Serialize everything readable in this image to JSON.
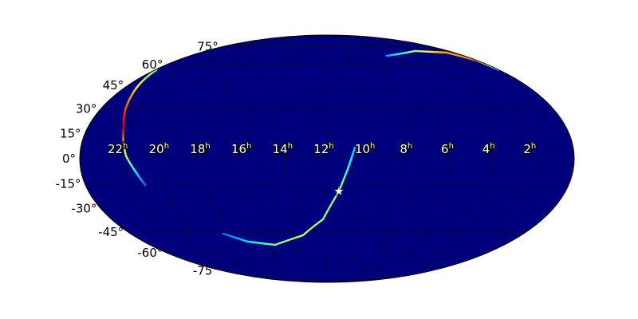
{
  "chart_data": {
    "type": "heatmap",
    "projection": "mollweide",
    "title": "",
    "background_color": "#00007f",
    "colormap": "jet",
    "grid": true,
    "ra_tick_labels": [
      {
        "h": "22",
        "sup": "h",
        "ra": 22
      },
      {
        "h": "20",
        "sup": "h",
        "ra": 20
      },
      {
        "h": "18",
        "sup": "h",
        "ra": 18
      },
      {
        "h": "16",
        "sup": "h",
        "ra": 16
      },
      {
        "h": "14",
        "sup": "h",
        "ra": 14
      },
      {
        "h": "12",
        "sup": "h",
        "ra": 12
      },
      {
        "h": "10",
        "sup": "h",
        "ra": 10
      },
      {
        "h": "8",
        "sup": "h",
        "ra": 8
      },
      {
        "h": "6",
        "sup": "h",
        "ra": 6
      },
      {
        "h": "4",
        "sup": "h",
        "ra": 4
      },
      {
        "h": "2",
        "sup": "h",
        "ra": 2
      }
    ],
    "dec_tick_labels": [
      {
        "label": "75°",
        "dec": 75
      },
      {
        "label": "60°",
        "dec": 60
      },
      {
        "label": "45°",
        "dec": 45
      },
      {
        "label": "30°",
        "dec": 30
      },
      {
        "label": "15°",
        "dec": 15
      },
      {
        "label": "0°",
        "dec": 0
      },
      {
        "label": "-15°",
        "dec": -15
      },
      {
        "label": "-30°",
        "dec": -30
      },
      {
        "label": "-45°",
        "dec": -45
      },
      {
        "label": "-60°",
        "dec": -60
      },
      {
        "label": "-75°",
        "dec": -75
      }
    ],
    "arcs": [
      {
        "points": [
          [
            10.64,
            6.6,
            0.2
          ],
          [
            11.03,
            -7.5,
            0.35
          ],
          [
            11.4,
            -19.4,
            0.45
          ],
          [
            12.22,
            -36.7,
            0.45
          ],
          [
            13.48,
            -47.3,
            0.5
          ],
          [
            15.5,
            -54,
            0.45
          ],
          [
            17.2,
            -51.7,
            0.25
          ],
          [
            18.34,
            -46.2,
            0.1
          ]
        ]
      },
      {
        "points": [
          [
            23.9,
            56,
            0.4
          ],
          [
            23.03,
            38.3,
            0.7
          ],
          [
            22.2,
            18.5,
            0.95
          ],
          [
            21.75,
            1.5,
            0.5
          ],
          [
            21.35,
            -7.5,
            0.3
          ],
          [
            21.03,
            -15.6,
            0.1
          ]
        ]
      },
      {
        "points": [
          [
            6.77,
            66.9,
            0.15
          ],
          [
            3.3,
            71,
            0.5
          ],
          [
            0.68,
            69.6,
            0.7
          ],
          [
            0.05,
            63,
            0.75
          ],
          [
            0.02,
            56,
            0.3
          ]
        ]
      }
    ],
    "marker": {
      "symbol": "star",
      "ra": 11.4,
      "dec": -19.4,
      "color": "#ffffff"
    }
  }
}
